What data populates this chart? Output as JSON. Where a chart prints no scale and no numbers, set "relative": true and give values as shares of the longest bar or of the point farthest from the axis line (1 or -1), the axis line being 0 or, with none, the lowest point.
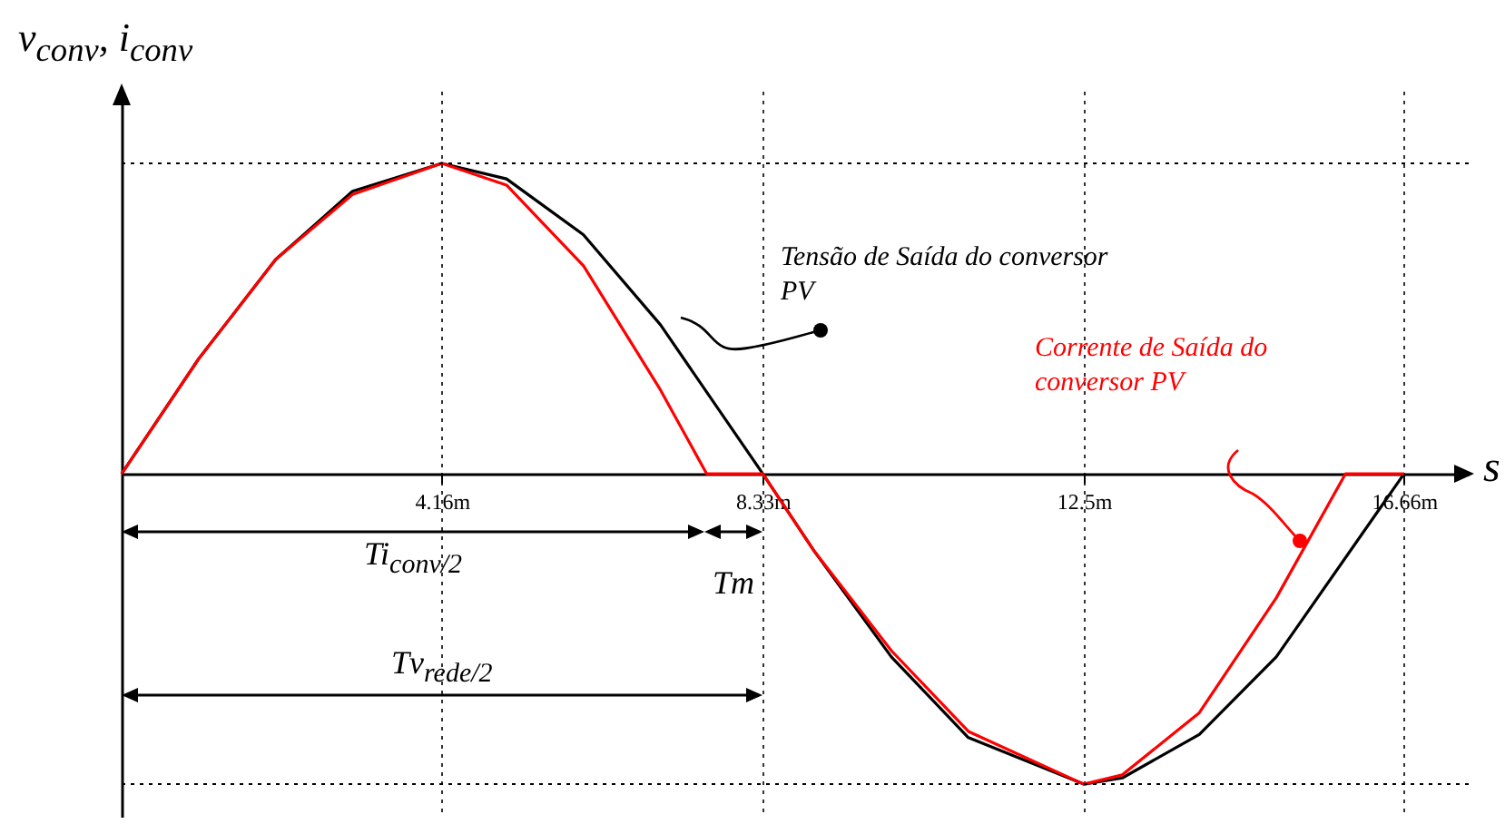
{
  "chart_data": {
    "type": "line",
    "relative": true,
    "ylabel": "v$_{conv}$, i$_{conv}$",
    "xlabel": "s",
    "xlim": [
      0,
      17.5
    ],
    "xticks": [
      {
        "value": 4.16,
        "label": "4.16m"
      },
      {
        "value": 8.33,
        "label": "8.33m"
      },
      {
        "value": 12.5,
        "label": "12.5m"
      },
      {
        "value": 16.66,
        "label": "16.66m"
      }
    ],
    "grid": "x",
    "legend": false,
    "marker": "none",
    "line_style": "solid",
    "ref_lines": [
      {
        "axis": "y",
        "value": 1,
        "line_style": "dotted"
      },
      {
        "axis": "y",
        "value": -1,
        "line_style": "dotted"
      }
    ],
    "annotations": [
      "Ti$_{conv/2}$",
      "Tm",
      "Tv$_{rede/2}$"
    ],
    "series": [
      {
        "name": "Tensão de Saída do conversor PV",
        "color": "#000000",
        "x": [
          0,
          1,
          2,
          3,
          4.16,
          5,
          6,
          7,
          8.33,
          9,
          10,
          11,
          12.5,
          13,
          14,
          15,
          16.66
        ],
        "values": [
          0,
          0.37,
          0.69,
          0.91,
          1,
          0.95,
          0.77,
          0.48,
          0,
          -0.25,
          -0.59,
          -0.85,
          -1,
          -0.98,
          -0.84,
          -0.59,
          0
        ]
      },
      {
        "name": "Corrente de Saída do conversor PV",
        "color": "#ff0000",
        "x": [
          0,
          1,
          2,
          3,
          4.16,
          5,
          6,
          7,
          7.6,
          8.33,
          9,
          10,
          11,
          12.5,
          13,
          14,
          15,
          15.9,
          16.66
        ],
        "values": [
          0,
          0.37,
          0.69,
          0.9,
          1,
          0.93,
          0.67,
          0.27,
          0,
          0,
          -0.25,
          -0.57,
          -0.83,
          -1,
          -0.97,
          -0.77,
          -0.4,
          0,
          0
        ]
      }
    ]
  }
}
